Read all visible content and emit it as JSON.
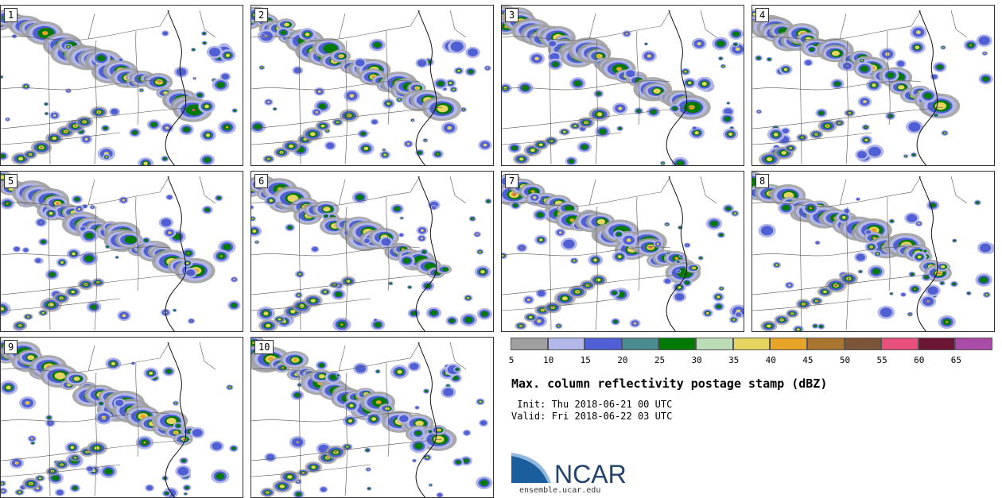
{
  "panels": [
    "1",
    "2",
    "3",
    "4",
    "5",
    "6",
    "7",
    "8",
    "9",
    "10"
  ],
  "colorbar": {
    "ticks": [
      "5",
      "10",
      "15",
      "20",
      "25",
      "30",
      "35",
      "40",
      "45",
      "50",
      "55",
      "60",
      "65"
    ],
    "colors": [
      "#a0a0a0",
      "#b4b8e8",
      "#5060d4",
      "#4a8c90",
      "#007a00",
      "#bcdcb8",
      "#e6d460",
      "#e8a428",
      "#a87630",
      "#7c5438",
      "#e8507c",
      "#6a1634",
      "#a84ca8"
    ]
  },
  "legend": {
    "title": "Max. column reflectivity postage stamp (dBZ)",
    "init_label": " Init: Thu 2018-06-21 00 UTC",
    "valid_label": "Valid: Fri 2018-06-22 03 UTC"
  },
  "logo": {
    "name": "NCAR",
    "url": "ensemble.ucar.edu",
    "blue": "#1a5e9e",
    "dark": "#22436e"
  }
}
